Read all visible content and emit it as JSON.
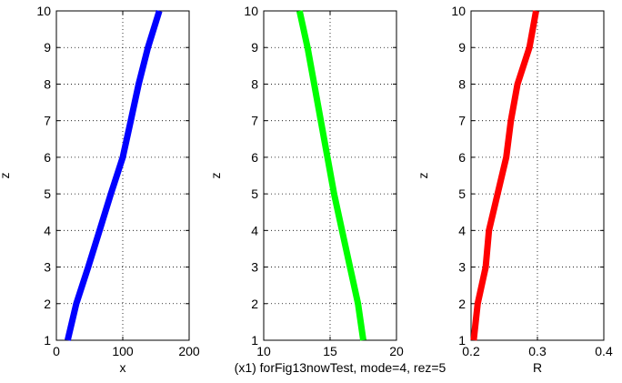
{
  "caption": "(x1) forFig13nowTest, mode=4, rez=5",
  "chart_data": [
    {
      "type": "line",
      "xlabel": "x",
      "ylabel": "z",
      "xlim": [
        0,
        200
      ],
      "ylim": [
        1,
        10
      ],
      "xticks": [
        0,
        100,
        200
      ],
      "yticks": [
        1,
        2,
        3,
        4,
        5,
        6,
        7,
        8,
        9,
        10
      ],
      "grid": true,
      "series": [
        {
          "color": "#0000ff",
          "x": [
            17,
            30,
            48,
            65,
            82,
            100,
            112,
            124,
            138,
            155
          ],
          "y": [
            1,
            2,
            3,
            4,
            5,
            6,
            7,
            8,
            9,
            10
          ]
        }
      ]
    },
    {
      "type": "line",
      "xlabel": "",
      "ylabel": "z",
      "xlim": [
        10,
        20
      ],
      "ylim": [
        1,
        10
      ],
      "xticks": [
        10,
        15,
        20
      ],
      "yticks": [
        1,
        2,
        3,
        4,
        5,
        6,
        7,
        8,
        9,
        10
      ],
      "grid": true,
      "series": [
        {
          "color": "#00ff00",
          "x": [
            17.5,
            17.1,
            16.5,
            15.9,
            15.3,
            14.8,
            14.3,
            13.8,
            13.3,
            12.7
          ],
          "y": [
            1,
            2,
            3,
            4,
            5,
            6,
            7,
            8,
            9,
            10
          ]
        }
      ]
    },
    {
      "type": "line",
      "xlabel": "R",
      "ylabel": "z",
      "xlim": [
        0.2,
        0.4
      ],
      "ylim": [
        1,
        10
      ],
      "xticks": [
        0.2,
        0.3,
        0.4
      ],
      "yticks": [
        1,
        2,
        3,
        4,
        5,
        6,
        7,
        8,
        9,
        10
      ],
      "grid": true,
      "series": [
        {
          "color": "#ff0000",
          "x": [
            0.204,
            0.21,
            0.222,
            0.227,
            0.24,
            0.253,
            0.26,
            0.27,
            0.288,
            0.298
          ],
          "y": [
            1,
            2,
            3,
            4,
            5,
            6,
            7,
            8,
            9,
            10
          ]
        }
      ]
    }
  ]
}
